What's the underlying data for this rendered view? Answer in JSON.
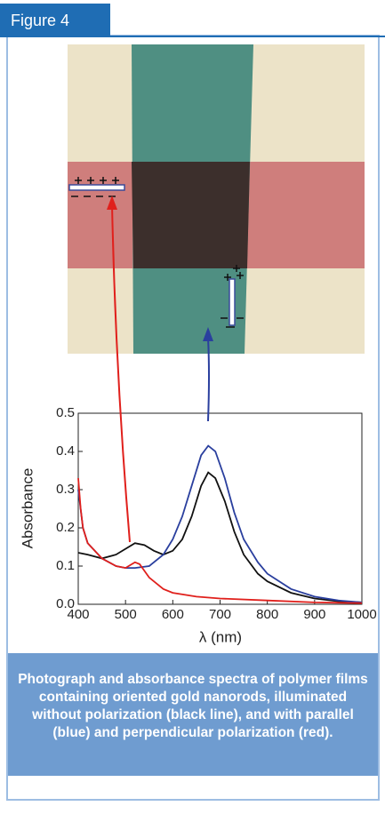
{
  "header": {
    "title": "Figure 4"
  },
  "chart_data": {
    "type": "line",
    "xlabel": "λ (nm)",
    "ylabel": "Absorbance",
    "xlim": [
      400,
      1000
    ],
    "xticks": [
      400,
      500,
      600,
      700,
      800,
      900,
      1000
    ],
    "ylim": [
      0,
      0.5
    ],
    "yticks": [
      {
        "value": 0,
        "label": "0.0"
      },
      0.1,
      0.2,
      0.3,
      0.4,
      0.5
    ],
    "series": [
      {
        "color": "#111111",
        "x": [
          400,
          420,
          450,
          480,
          500,
          520,
          540,
          560,
          580,
          600,
          620,
          640,
          660,
          675,
          690,
          710,
          730,
          750,
          780,
          800,
          850,
          900,
          950,
          1000
        ],
        "values": [
          0.135,
          0.13,
          0.12,
          0.13,
          0.145,
          0.16,
          0.155,
          0.14,
          0.13,
          0.14,
          0.17,
          0.23,
          0.31,
          0.345,
          0.33,
          0.27,
          0.19,
          0.13,
          0.08,
          0.06,
          0.03,
          0.015,
          0.008,
          0.005
        ]
      },
      {
        "color": "#2a3f9e",
        "x": [
          400,
          410,
          420,
          450,
          480,
          500,
          520,
          550,
          580,
          600,
          620,
          640,
          660,
          675,
          690,
          710,
          730,
          750,
          780,
          800,
          850,
          900,
          950,
          1000
        ],
        "values": [
          0.3,
          0.2,
          0.16,
          0.12,
          0.1,
          0.095,
          0.095,
          0.1,
          0.13,
          0.17,
          0.23,
          0.31,
          0.39,
          0.415,
          0.4,
          0.33,
          0.24,
          0.17,
          0.11,
          0.08,
          0.04,
          0.02,
          0.01,
          0.005
        ]
      },
      {
        "color": "#e0201c",
        "x": [
          400,
          405,
          410,
          420,
          450,
          480,
          500,
          520,
          530,
          550,
          580,
          600,
          650,
          700,
          800,
          900,
          1000
        ],
        "values": [
          0.33,
          0.25,
          0.2,
          0.16,
          0.12,
          0.1,
          0.095,
          0.11,
          0.105,
          0.07,
          0.04,
          0.03,
          0.02,
          0.015,
          0.01,
          0.005,
          0.003
        ]
      }
    ]
  },
  "caption": "Photograph and absorbance spectra of polymer films containing oriented gold nanorods, illuminated without polarization (black line), and with parallel (blue) and perpendicular polarization (red)."
}
